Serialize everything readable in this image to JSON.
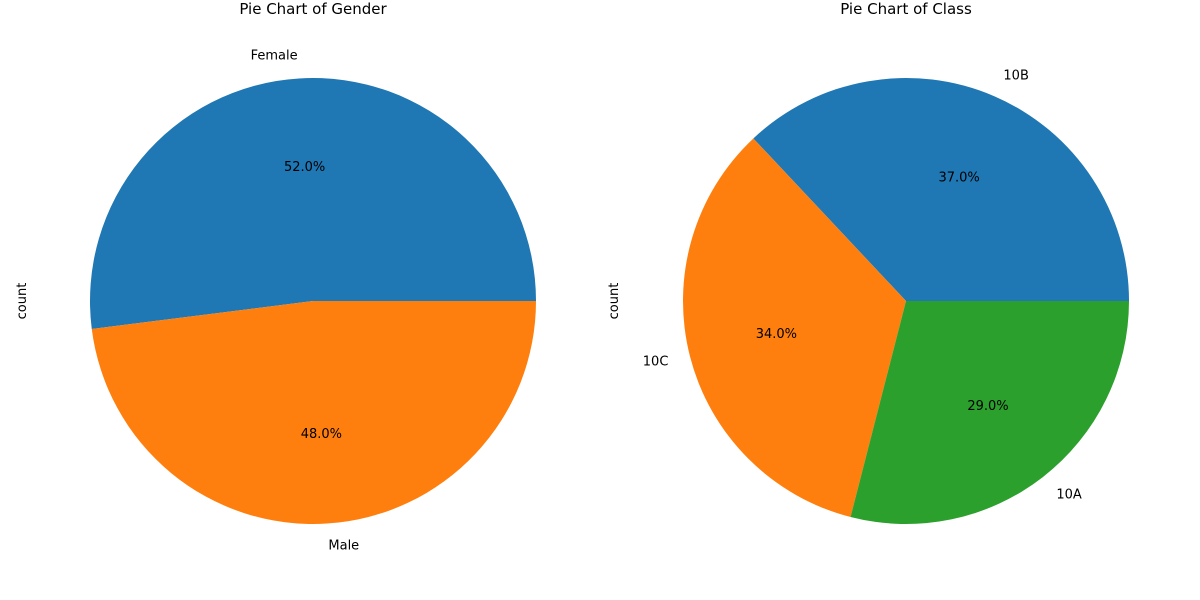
{
  "chart_data": [
    {
      "type": "pie",
      "title": "Pie Chart of Gender",
      "ylabel": "count",
      "categories": [
        "Female",
        "Male"
      ],
      "values": [
        52.0,
        48.0
      ],
      "percent_labels": [
        "52.0%",
        "48.0%"
      ],
      "colors": [
        "#1f77b4",
        "#ff7f0e"
      ],
      "start_angle": 0,
      "direction": "counterclockwise"
    },
    {
      "type": "pie",
      "title": "Pie Chart of Class",
      "ylabel": "count",
      "categories": [
        "10B",
        "10C",
        "10A"
      ],
      "values": [
        37.0,
        34.0,
        29.0
      ],
      "percent_labels": [
        "37.0%",
        "34.0%",
        "29.0%"
      ],
      "colors": [
        "#1f77b4",
        "#ff7f0e",
        "#2ca02c"
      ],
      "start_angle": 0,
      "direction": "counterclockwise"
    }
  ]
}
